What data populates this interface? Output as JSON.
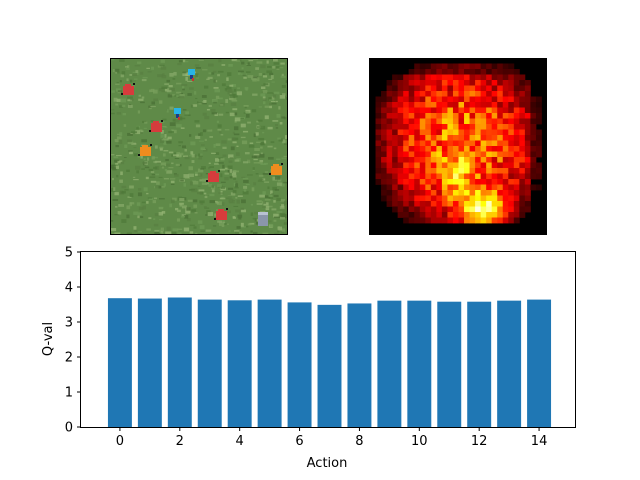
{
  "game_frame": {
    "background_color": "#5f8a48",
    "enemies": [
      {
        "color": "#d63c3c"
      },
      {
        "color": "#d63c3c"
      },
      {
        "color": "#d63c3c"
      },
      {
        "color": "#d63c3c"
      },
      {
        "color": "#f08c1e"
      },
      {
        "color": "#f08c1e"
      }
    ],
    "agents": [
      {
        "color": "#28b4e6"
      },
      {
        "color": "#28b4e6"
      }
    ],
    "structure_color": "#8a96aa"
  },
  "saliency_map": {
    "colormap": "hot",
    "grid_size": 32
  },
  "chart_data": {
    "type": "bar",
    "categories": [
      0,
      1,
      2,
      3,
      4,
      5,
      6,
      7,
      8,
      9,
      10,
      11,
      12,
      13,
      14
    ],
    "values": [
      3.68,
      3.67,
      3.7,
      3.64,
      3.62,
      3.64,
      3.56,
      3.49,
      3.53,
      3.61,
      3.61,
      3.58,
      3.58,
      3.61,
      3.64
    ],
    "xlabel": "Action",
    "ylabel": "Q-val",
    "ylim": [
      0,
      5
    ],
    "xlim": [
      -1.3,
      15.2
    ],
    "xticks": [
      0,
      2,
      4,
      6,
      8,
      10,
      12,
      14
    ],
    "yticks": [
      0,
      1,
      2,
      3,
      4,
      5
    ],
    "bar_color": "#1f77b4",
    "grid": false
  }
}
